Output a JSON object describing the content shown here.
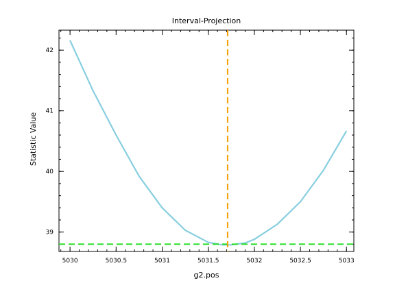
{
  "chart_data": {
    "type": "line",
    "title": "Interval-Projection",
    "xlabel": "g2.pos",
    "ylabel": "Statistic Value",
    "xlim": [
      5029.88,
      5033.08
    ],
    "ylim": [
      38.68,
      42.33
    ],
    "x_major_ticks": [
      5030,
      5030.5,
      5031,
      5031.5,
      5032,
      5032.5,
      5033
    ],
    "x_tick_labels": [
      "5030",
      "5030.5",
      "5031",
      "5031.5",
      "5032",
      "5032.5",
      "5033"
    ],
    "y_major_ticks": [
      39,
      40,
      41,
      42
    ],
    "y_tick_labels": [
      "39",
      "40",
      "41",
      "42"
    ],
    "x_minor_step": 0.1,
    "y_minor_step": 0.2,
    "grid": false,
    "curve": {
      "color": "#87cedf",
      "x": [
        5030,
        5030.25,
        5030.5,
        5030.75,
        5031,
        5031.25,
        5031.5,
        5031.65,
        5031.75,
        5031.9,
        5032,
        5032.25,
        5032.5,
        5032.75,
        5033
      ],
      "y": [
        42.16,
        41.33,
        40.6,
        39.92,
        39.4,
        39.03,
        38.83,
        38.79,
        38.79,
        38.82,
        38.88,
        39.13,
        39.5,
        40.02,
        40.67
      ]
    },
    "vline": {
      "x": 5031.71,
      "color": "#f5a000",
      "style": "dashed"
    },
    "hline": {
      "y": 38.8,
      "color": "#22dd22",
      "style": "dashed"
    }
  }
}
